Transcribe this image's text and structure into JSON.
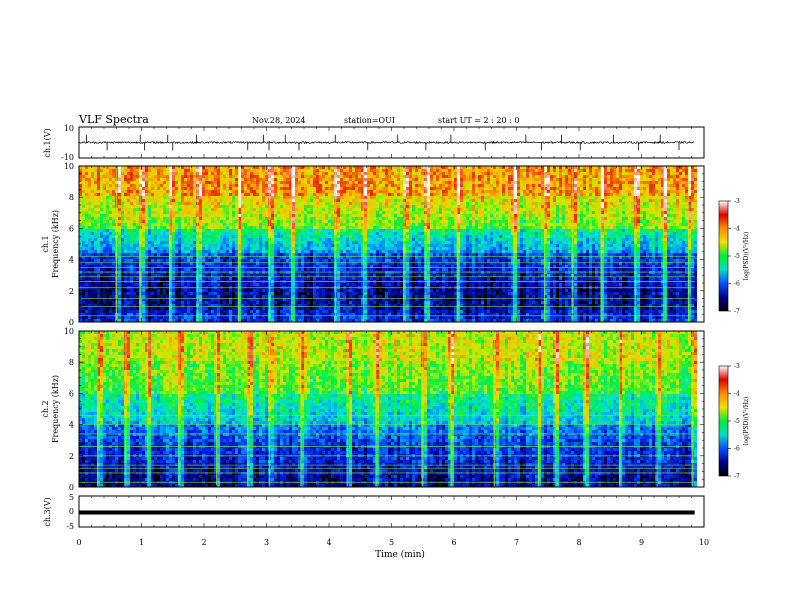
{
  "header": {
    "title": "VLF Spectra",
    "date": "Nov.28, 2024",
    "station": "station=OUI",
    "start": "start  UT =   2  : 20 : 0"
  },
  "colorbar": {
    "ticks": [
      "-3",
      "-4",
      "-5",
      "-6",
      "-7"
    ],
    "label": "log(PSD)(V²/Hz)",
    "colors": [
      "#ffffff",
      "#e00000",
      "#ff8c00",
      "#f0e000",
      "#00ee30",
      "#00ddc8",
      "#0050ff",
      "#000090",
      "#000000"
    ]
  },
  "chart_data": [
    {
      "type": "line",
      "panel": "ch1-waveform",
      "ylabel": "ch.1(V)",
      "ylim": [
        -10,
        10
      ],
      "ytick_labels": [
        "10",
        "-10"
      ],
      "baseline_v": 0,
      "noise_amplitude_v": 0.6,
      "spikes_min": [
        0.12,
        0.45,
        0.98,
        1.05,
        1.42,
        1.5,
        1.88,
        2.7,
        2.95,
        3.04,
        3.3,
        3.52,
        4.1,
        4.62,
        5.1,
        5.55,
        5.95,
        6.5,
        7.15,
        7.4,
        7.72,
        8.02,
        8.55,
        8.95,
        9.3,
        9.6
      ],
      "spike_amplitude_v": 5
    },
    {
      "type": "heatmap",
      "panel": "ch1-spectrogram",
      "ylabel": "ch.1",
      "ylabel2": "Frequency (kHz)",
      "ylim": [
        0,
        10
      ],
      "ytick_labels": [
        "0",
        "2",
        "4",
        "6",
        "8",
        "10"
      ],
      "x_range_min": [
        0,
        9.85
      ],
      "band_edges_khz": [
        0,
        0.8,
        2,
        4.5,
        6,
        8,
        10
      ],
      "band_log_psd": [
        -6.3,
        -6.6,
        -6.7,
        -5.8,
        -4.8,
        -4.0
      ],
      "narrowband_lines_khz": [
        0.4,
        1.0,
        1.5,
        2.2,
        2.6,
        2.9,
        3.2,
        3.5,
        3.8,
        4.2
      ],
      "bursts_min": [
        0.6,
        0.98,
        1.45,
        1.9,
        2.55,
        3.05,
        3.4,
        4.1,
        4.55,
        5.2,
        5.55,
        6.05,
        6.95,
        7.45,
        7.9,
        8.35,
        8.9,
        9.35,
        9.75
      ]
    },
    {
      "type": "heatmap",
      "panel": "ch2-spectrogram",
      "ylabel": "ch.2",
      "ylabel2": "Frequency (kHz)",
      "ylim": [
        0,
        10
      ],
      "ytick_labels": [
        "0",
        "2",
        "4",
        "6",
        "8",
        "10"
      ],
      "x_range_min": [
        0,
        9.85
      ],
      "band_edges_khz": [
        0,
        1.5,
        2.5,
        4,
        6,
        8,
        10
      ],
      "band_log_psd": [
        -6.7,
        -6.4,
        -6.3,
        -5.6,
        -4.9,
        -4.5
      ],
      "narrowband_lines_khz": [
        0.3,
        0.9,
        1.2,
        1.4,
        2.0,
        2.6,
        3.4,
        4.0,
        4.6
      ],
      "bursts_min": [
        0.3,
        0.75,
        1.1,
        1.6,
        2.2,
        2.7,
        3.05,
        3.55,
        4.3,
        4.75,
        5.5,
        5.95,
        6.65,
        7.35,
        7.62,
        8.1,
        8.65,
        9.25,
        9.82
      ]
    },
    {
      "type": "line",
      "panel": "ch3-waveform",
      "ylabel": "ch.3(V)",
      "ylim": [
        -5,
        5
      ],
      "ytick_labels": [
        "5",
        "0",
        "-5"
      ],
      "value_v": 0,
      "x_range_min": [
        0,
        9.85
      ]
    }
  ],
  "xaxis": {
    "xlabel": "Time (min)",
    "xlim": [
      0,
      10
    ],
    "tick_labels": [
      "0",
      "1",
      "2",
      "3",
      "4",
      "5",
      "6",
      "7",
      "8",
      "9",
      "10"
    ]
  }
}
